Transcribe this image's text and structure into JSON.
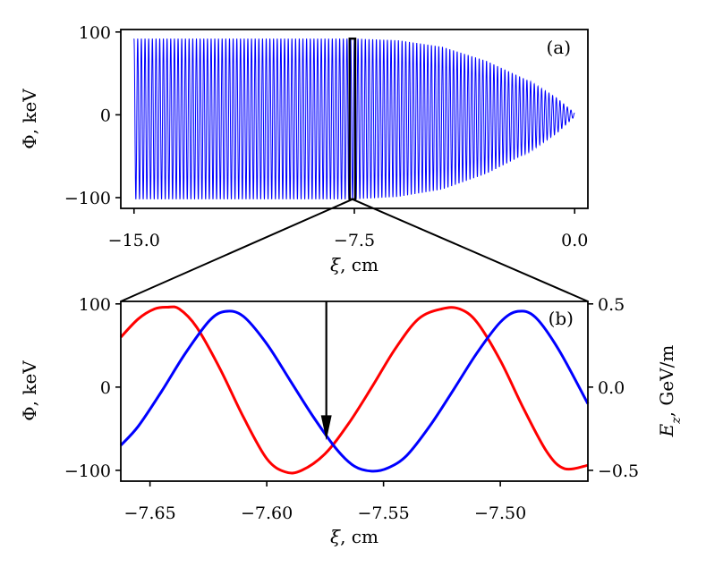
{
  "chart_data": [
    {
      "type": "line",
      "panel_label": "(a)",
      "xlabel_symbol": "ξ",
      "xlabel_unit": ", cm",
      "ylabel": "Φ, keV",
      "xlim": [
        -15.45,
        0.45
      ],
      "ylim": [
        -113,
        103
      ],
      "x_ticks": [
        -15.0,
        -7.5,
        0.0
      ],
      "x_tick_labels": [
        "−15.0",
        "−7.5",
        "0.0"
      ],
      "y_ticks": [
        -100,
        0,
        100
      ],
      "y_tick_labels": [
        "−100",
        "0",
        "100"
      ],
      "grid": false,
      "series": [
        {
          "color": "#0000ff",
          "wavelength_cm": 0.125,
          "x_range": [
            -15.0,
            0.0
          ],
          "max_envelope": {
            "x": [
              -15.0,
              -7.5,
              -6.0,
              -4.5,
              -3.0,
              -1.5,
              -0.6,
              0.0
            ],
            "y": [
              92,
              92,
              90,
              82,
              65,
              40,
              20,
              2
            ]
          },
          "min_envelope": {
            "x": [
              -15.0,
              -7.5,
              -6.0,
              -4.5,
              -3.0,
              -1.5,
              -0.6,
              0.0
            ],
            "y": [
              -102,
              -102,
              -99,
              -90,
              -71,
              -44,
              -22,
              -2
            ]
          }
        }
      ],
      "highlight_box": {
        "x": [
          -7.66,
          -7.47
        ],
        "y": [
          -102,
          92
        ]
      }
    },
    {
      "type": "line",
      "panel_label": "(b)",
      "xlabel_symbol": "ξ",
      "xlabel_unit": ", cm",
      "ylabel": "Φ, keV",
      "ylabel_right_symbol": "E",
      "ylabel_right_sub": "z",
      "ylabel_right_unit": ", GeV/m",
      "xlim": [
        -7.6625,
        -7.4625
      ],
      "ylim": [
        -113,
        103
      ],
      "ylim_right": [
        -0.565,
        0.515
      ],
      "x_ticks": [
        -7.65,
        -7.6,
        -7.55,
        -7.5
      ],
      "x_tick_labels": [
        "−7.65",
        "−7.60",
        "−7.55",
        "−7.50"
      ],
      "y_ticks": [
        -100,
        0,
        100
      ],
      "y_tick_labels": [
        "−100",
        "0",
        "100"
      ],
      "y_ticks_right": [
        -0.5,
        0.0,
        0.5
      ],
      "y_tick_labels_right": [
        "−0.5",
        "0.0",
        "0.5"
      ],
      "grid": false,
      "series": [
        {
          "axis": "left",
          "color": "#0000ff",
          "x": [
            -7.6625,
            -7.655,
            -7.645,
            -7.635,
            -7.6245,
            -7.6175,
            -7.61,
            -7.6,
            -7.59,
            -7.58,
            -7.57,
            -7.5625,
            -7.555,
            -7.548,
            -7.54,
            -7.53,
            -7.52,
            -7.51,
            -7.5,
            -7.4925,
            -7.485,
            -7.475,
            -7.4625
          ],
          "y": [
            -70,
            -47,
            -5,
            40,
            80,
            91,
            85,
            52,
            8,
            -36,
            -75,
            -95,
            -101,
            -97,
            -82,
            -46,
            -3,
            41,
            78,
            91,
            84,
            45,
            -20
          ]
        },
        {
          "axis": "right",
          "color": "#ff0000",
          "x": [
            -7.6625,
            -7.655,
            -7.648,
            -7.6425,
            -7.6375,
            -7.63,
            -7.62,
            -7.61,
            -7.6,
            -7.592,
            -7.585,
            -7.575,
            -7.565,
            -7.555,
            -7.545,
            -7.535,
            -7.525,
            -7.5175,
            -7.51,
            -7.5,
            -7.49,
            -7.48,
            -7.4725,
            -7.4625
          ],
          "y": [
            0.3,
            0.41,
            0.47,
            0.48,
            0.47,
            0.36,
            0.11,
            -0.18,
            -0.43,
            -0.51,
            -0.5,
            -0.4,
            -0.22,
            0.0,
            0.23,
            0.41,
            0.47,
            0.47,
            0.39,
            0.16,
            -0.13,
            -0.39,
            -0.49,
            -0.47
          ]
        }
      ],
      "arrow": {
        "x": -7.5745,
        "y_from": 103,
        "y_to": -64
      }
    }
  ]
}
